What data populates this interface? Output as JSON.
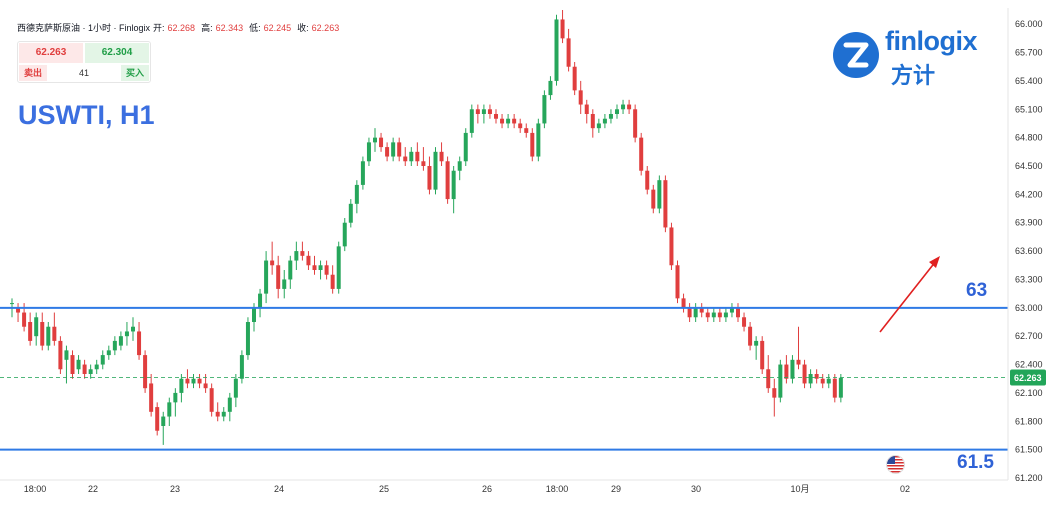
{
  "header": {
    "symbol_line": "西德克萨斯原油 · 1小时 · Finlogix",
    "open_label": "开:",
    "open_value": "62.268",
    "high_label": "高:",
    "high_value": "62.343",
    "low_label": "低:",
    "low_value": "62.245",
    "close_label": "收:",
    "close_value": "62.263"
  },
  "trade": {
    "sell_price": "62.263",
    "buy_price": "62.304",
    "sell_label": "卖出",
    "buy_label": "买入",
    "spread": "41"
  },
  "title": "USWTI, H1",
  "logo": {
    "brand_en_a": "fin",
    "brand_en_b": "logix",
    "brand_cn": "方计"
  },
  "levels": [
    {
      "value": 63.0,
      "label": "63"
    },
    {
      "value": 61.5,
      "label": "61.5"
    }
  ],
  "current_price": {
    "value": 62.263,
    "label": "62.263"
  },
  "colors": {
    "up": "#26a65b",
    "down": "#e03e3e",
    "level": "#2f7ae5",
    "arrow": "#e02020",
    "price_tag": "#22a559"
  },
  "chart_data": {
    "type": "candlestick",
    "title": "USWTI, H1",
    "ylim": [
      61.2,
      66.15
    ],
    "y_ticks": [
      "66.000",
      "65.700",
      "65.400",
      "65.100",
      "64.800",
      "64.500",
      "64.200",
      "63.900",
      "63.600",
      "63.300",
      "63.000",
      "62.700",
      "62.400",
      "62.100",
      "61.800",
      "61.500",
      "61.200"
    ],
    "x_ticks": [
      "18:00",
      "22",
      "23",
      "24",
      "25",
      "26",
      "18:00",
      "29",
      "30",
      "10月",
      "02"
    ],
    "horizontal_levels": [
      63.0,
      61.5
    ],
    "current_price": 62.263,
    "arrow": {
      "direction": "up",
      "from_price": 62.75,
      "to_price": 63.55
    },
    "candles": [
      [
        63.05,
        63.1,
        62.9,
        63.05
      ],
      [
        63.0,
        63.05,
        62.85,
        62.95
      ],
      [
        62.95,
        63.05,
        62.75,
        62.8
      ],
      [
        62.85,
        62.95,
        62.6,
        62.65
      ],
      [
        62.7,
        62.95,
        62.6,
        62.9
      ],
      [
        62.85,
        62.95,
        62.55,
        62.6
      ],
      [
        62.6,
        62.85,
        62.55,
        62.8
      ],
      [
        62.8,
        62.95,
        62.6,
        62.65
      ],
      [
        62.65,
        62.7,
        62.3,
        62.35
      ],
      [
        62.45,
        62.6,
        62.2,
        62.55
      ],
      [
        62.5,
        62.55,
        62.25,
        62.3
      ],
      [
        62.35,
        62.5,
        62.3,
        62.45
      ],
      [
        62.4,
        62.45,
        62.25,
        62.3
      ],
      [
        62.3,
        62.4,
        62.25,
        62.35
      ],
      [
        62.35,
        62.45,
        62.3,
        62.4
      ],
      [
        62.4,
        62.55,
        62.35,
        62.5
      ],
      [
        62.5,
        62.6,
        62.45,
        62.55
      ],
      [
        62.55,
        62.7,
        62.5,
        62.65
      ],
      [
        62.6,
        62.75,
        62.55,
        62.7
      ],
      [
        62.7,
        62.85,
        62.6,
        62.75
      ],
      [
        62.75,
        62.9,
        62.65,
        62.8
      ],
      [
        62.75,
        62.85,
        62.45,
        62.5
      ],
      [
        62.5,
        62.55,
        62.1,
        62.15
      ],
      [
        62.2,
        62.3,
        61.85,
        61.9
      ],
      [
        61.95,
        62.0,
        61.65,
        61.7
      ],
      [
        61.75,
        61.9,
        61.55,
        61.85
      ],
      [
        61.85,
        62.05,
        61.75,
        62.0
      ],
      [
        62.0,
        62.15,
        61.85,
        62.1
      ],
      [
        62.1,
        62.3,
        62.0,
        62.25
      ],
      [
        62.25,
        62.35,
        62.15,
        62.2
      ],
      [
        62.2,
        62.3,
        62.15,
        62.25
      ],
      [
        62.25,
        62.3,
        62.15,
        62.2
      ],
      [
        62.2,
        62.3,
        62.1,
        62.15
      ],
      [
        62.15,
        62.2,
        61.85,
        61.9
      ],
      [
        61.9,
        62.0,
        61.8,
        61.85
      ],
      [
        61.85,
        61.95,
        61.8,
        61.9
      ],
      [
        61.9,
        62.1,
        61.8,
        62.05
      ],
      [
        62.05,
        62.3,
        61.95,
        62.25
      ],
      [
        62.25,
        62.55,
        62.2,
        62.5
      ],
      [
        62.5,
        62.9,
        62.45,
        62.85
      ],
      [
        62.85,
        63.05,
        62.75,
        63.0
      ],
      [
        63.0,
        63.2,
        62.9,
        63.15
      ],
      [
        63.15,
        63.6,
        63.05,
        63.5
      ],
      [
        63.5,
        63.7,
        63.35,
        63.45
      ],
      [
        63.45,
        63.55,
        63.1,
        63.2
      ],
      [
        63.2,
        63.4,
        63.1,
        63.3
      ],
      [
        63.3,
        63.55,
        63.2,
        63.5
      ],
      [
        63.5,
        63.7,
        63.4,
        63.6
      ],
      [
        63.6,
        63.7,
        63.5,
        63.55
      ],
      [
        63.55,
        63.6,
        63.4,
        63.45
      ],
      [
        63.45,
        63.55,
        63.35,
        63.4
      ],
      [
        63.4,
        63.5,
        63.3,
        63.45
      ],
      [
        63.45,
        63.5,
        63.3,
        63.35
      ],
      [
        63.35,
        63.45,
        63.15,
        63.2
      ],
      [
        63.2,
        63.7,
        63.15,
        63.65
      ],
      [
        63.65,
        63.95,
        63.6,
        63.9
      ],
      [
        63.9,
        64.15,
        63.85,
        64.1
      ],
      [
        64.1,
        64.35,
        64.0,
        64.3
      ],
      [
        64.3,
        64.6,
        64.25,
        64.55
      ],
      [
        64.55,
        64.8,
        64.5,
        64.75
      ],
      [
        64.75,
        64.9,
        64.65,
        64.8
      ],
      [
        64.8,
        64.85,
        64.65,
        64.7
      ],
      [
        64.7,
        64.75,
        64.55,
        64.6
      ],
      [
        64.6,
        64.8,
        64.55,
        64.75
      ],
      [
        64.75,
        64.8,
        64.55,
        64.6
      ],
      [
        64.6,
        64.7,
        64.5,
        64.55
      ],
      [
        64.55,
        64.7,
        64.5,
        64.65
      ],
      [
        64.65,
        64.75,
        64.5,
        64.55
      ],
      [
        64.55,
        64.7,
        64.45,
        64.5
      ],
      [
        64.5,
        64.6,
        64.2,
        64.25
      ],
      [
        64.25,
        64.7,
        64.2,
        64.65
      ],
      [
        64.65,
        64.75,
        64.5,
        64.55
      ],
      [
        64.55,
        64.6,
        64.1,
        64.15
      ],
      [
        64.15,
        64.5,
        64.0,
        64.45
      ],
      [
        64.45,
        64.6,
        64.35,
        64.55
      ],
      [
        64.55,
        64.9,
        64.5,
        64.85
      ],
      [
        64.85,
        65.15,
        64.8,
        65.1
      ],
      [
        65.1,
        65.15,
        64.95,
        65.05
      ],
      [
        65.05,
        65.15,
        64.95,
        65.1
      ],
      [
        65.1,
        65.15,
        65.0,
        65.05
      ],
      [
        65.05,
        65.1,
        64.95,
        65.0
      ],
      [
        65.0,
        65.05,
        64.9,
        64.95
      ],
      [
        64.95,
        65.05,
        64.9,
        65.0
      ],
      [
        65.0,
        65.05,
        64.9,
        64.95
      ],
      [
        64.95,
        65.0,
        64.85,
        64.9
      ],
      [
        64.9,
        64.95,
        64.8,
        64.85
      ],
      [
        64.85,
        64.9,
        64.55,
        64.6
      ],
      [
        64.6,
        65.0,
        64.55,
        64.95
      ],
      [
        64.95,
        65.3,
        64.9,
        65.25
      ],
      [
        65.25,
        65.45,
        65.2,
        65.4
      ],
      [
        65.4,
        66.1,
        65.35,
        66.05
      ],
      [
        66.05,
        66.15,
        65.8,
        65.85
      ],
      [
        65.85,
        65.95,
        65.5,
        65.55
      ],
      [
        65.55,
        65.6,
        65.25,
        65.3
      ],
      [
        65.3,
        65.4,
        65.05,
        65.15
      ],
      [
        65.15,
        65.2,
        64.95,
        65.05
      ],
      [
        65.05,
        65.1,
        64.8,
        64.9
      ],
      [
        64.9,
        65.0,
        64.85,
        64.95
      ],
      [
        64.95,
        65.05,
        64.9,
        65.0
      ],
      [
        65.0,
        65.1,
        64.95,
        65.05
      ],
      [
        65.05,
        65.15,
        65.0,
        65.1
      ],
      [
        65.1,
        65.2,
        65.05,
        65.15
      ],
      [
        65.15,
        65.2,
        65.05,
        65.1
      ],
      [
        65.1,
        65.15,
        64.75,
        64.8
      ],
      [
        64.8,
        64.85,
        64.4,
        64.45
      ],
      [
        64.45,
        64.5,
        64.2,
        64.25
      ],
      [
        64.25,
        64.3,
        64.0,
        64.05
      ],
      [
        64.05,
        64.4,
        64.0,
        64.35
      ],
      [
        64.35,
        64.4,
        63.8,
        63.85
      ],
      [
        63.85,
        63.9,
        63.4,
        63.45
      ],
      [
        63.45,
        63.5,
        63.05,
        63.1
      ],
      [
        63.1,
        63.15,
        62.95,
        63.0
      ],
      [
        63.0,
        63.05,
        62.85,
        62.9
      ],
      [
        62.9,
        63.05,
        62.85,
        63.0
      ],
      [
        63.0,
        63.05,
        62.9,
        62.95
      ],
      [
        62.95,
        63.0,
        62.85,
        62.9
      ],
      [
        62.9,
        63.0,
        62.85,
        62.95
      ],
      [
        62.95,
        63.0,
        62.85,
        62.9
      ],
      [
        62.9,
        63.0,
        62.85,
        62.95
      ],
      [
        62.95,
        63.05,
        62.9,
        63.0
      ],
      [
        63.0,
        63.05,
        62.85,
        62.9
      ],
      [
        62.9,
        62.95,
        62.75,
        62.8
      ],
      [
        62.8,
        62.85,
        62.55,
        62.6
      ],
      [
        62.6,
        62.7,
        62.45,
        62.65
      ],
      [
        62.65,
        62.7,
        62.3,
        62.35
      ],
      [
        62.35,
        62.5,
        62.1,
        62.15
      ],
      [
        62.15,
        62.25,
        61.85,
        62.05
      ],
      [
        62.05,
        62.45,
        62.0,
        62.4
      ],
      [
        62.4,
        62.5,
        62.2,
        62.25
      ],
      [
        62.25,
        62.5,
        62.2,
        62.45
      ],
      [
        62.45,
        62.8,
        62.35,
        62.4
      ],
      [
        62.4,
        62.45,
        62.15,
        62.2
      ],
      [
        62.2,
        62.35,
        62.15,
        62.3
      ],
      [
        62.3,
        62.35,
        62.2,
        62.25
      ],
      [
        62.25,
        62.3,
        62.15,
        62.2
      ],
      [
        62.2,
        62.3,
        62.15,
        62.25
      ],
      [
        62.25,
        62.3,
        62.0,
        62.05
      ],
      [
        62.05,
        62.3,
        62.0,
        62.26
      ]
    ]
  }
}
